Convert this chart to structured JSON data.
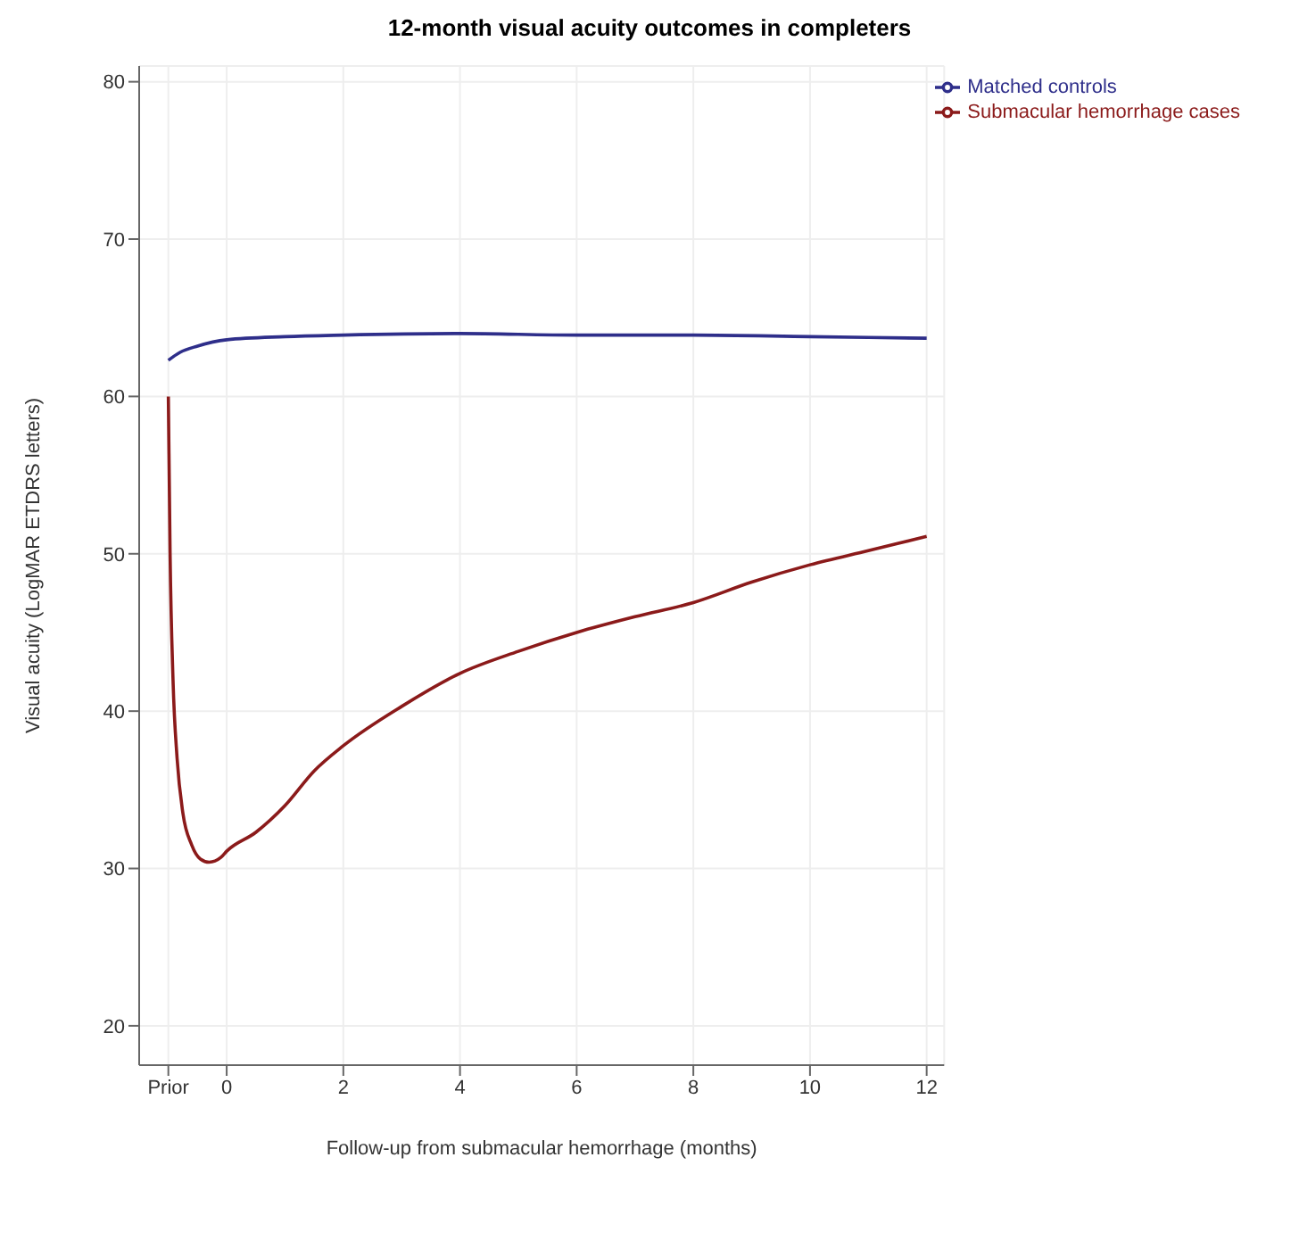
{
  "chart_data": {
    "type": "line",
    "title": "12-month visual acuity outcomes in completers",
    "xlabel": "Follow-up from submacular hemorrhage (months)",
    "ylabel": "Visual acuity (LogMAR ETDRS letters)",
    "series": [
      {
        "name": "Submacular hemorrhage cases",
        "color": "#8b1a1a",
        "x": [
          -1,
          -0.97,
          -0.92,
          -0.85,
          -0.75,
          -0.6,
          -0.45,
          -0.3,
          -0.1,
          0,
          0.5,
          1,
          1.5,
          2,
          3,
          4,
          5,
          6,
          7,
          8,
          9,
          10,
          11,
          12
        ],
        "values": [
          60,
          50,
          42,
          37,
          33.5,
          31.5,
          30.6,
          30.4,
          30.7,
          31.1,
          32.3,
          34,
          36.2,
          37.8,
          40.3,
          42.4,
          43.8,
          45,
          46,
          46.9,
          48.2,
          49.3,
          50.2,
          51.1
        ]
      },
      {
        "name": "Matched controls",
        "color": "#2e2e8a",
        "x": [
          -1,
          -0.8,
          -0.5,
          0,
          1,
          2,
          4,
          6,
          8,
          10,
          12
        ],
        "values": [
          62.3,
          62.8,
          63.2,
          63.6,
          63.8,
          63.9,
          64,
          63.9,
          63.9,
          63.8,
          63.7
        ]
      }
    ],
    "xlim": [
      -1.5,
      12.3
    ],
    "xticks": [
      {
        "value": -1,
        "label": "Prior"
      },
      0,
      2,
      4,
      6,
      8,
      10,
      12
    ],
    "ylim": [
      17.5,
      81
    ],
    "yticks": [
      20,
      30,
      40,
      50,
      60,
      70,
      80
    ],
    "grid": true,
    "legend": "top right",
    "marker": "none",
    "line_style": "solid"
  }
}
